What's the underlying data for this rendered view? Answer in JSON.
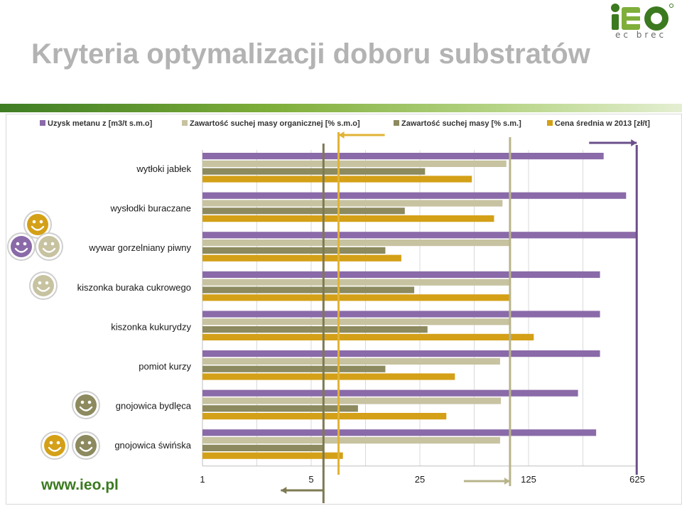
{
  "slide": {
    "title": "Kryteria optymalizacji doboru substratów",
    "footer_url": "www.ieo.pl",
    "logo_text": "iEO",
    "logo_subtext": "ec brec"
  },
  "colors": {
    "title": "#b3b3b3",
    "brand_green": "#3b7a1f",
    "purple_line": "#6b4f8a",
    "tan_line": "#b8b48c",
    "olive_line": "#7d7a52",
    "gold_line": "#e1b235"
  },
  "chart_data": {
    "type": "bar",
    "orientation": "horizontal",
    "x_scale": "log5",
    "xlim": [
      1,
      625
    ],
    "x_ticks": [
      "1",
      "5",
      "25",
      "125",
      "625"
    ],
    "grid": true,
    "legend_position": "top",
    "categories": [
      "wytłoki jabłek",
      "wysłodki buraczane",
      "wywar gorzelniany piwny",
      "kiszonka buraka cukrowego",
      "kiszonka kukurydzy",
      "pomiot kurzy",
      "gnojowica bydlęca",
      "gnojowica świńska"
    ],
    "series": [
      {
        "name": "Uzysk metanu z [m3/t s.m.o]",
        "color": "#8a6aa8",
        "values": [
          380,
          530,
          620,
          360,
          360,
          360,
          260,
          340
        ]
      },
      {
        "name": "Zawartość suchej masy organicznej [% s.m.o]",
        "color": "#c7c2a0",
        "values": [
          90,
          85,
          95,
          95,
          95,
          82,
          83,
          82
        ]
      },
      {
        "name": "Zawartość suchej masy [% s.m.]",
        "color": "#8c8a5e",
        "values": [
          27,
          20,
          15,
          23,
          28,
          15,
          10,
          6
        ]
      },
      {
        "name": "Cena średnia w 2013 [zł/t]",
        "color": "#d4a017",
        "values": [
          54,
          75,
          19,
          95,
          135,
          42,
          37,
          8
        ]
      }
    ],
    "reference_lines": [
      {
        "name": "olive",
        "value": 6,
        "color": "#7d7a52",
        "arrow": "left"
      },
      {
        "name": "gold",
        "value": 7.5,
        "color": "#e1b235",
        "arrow": "left"
      },
      {
        "name": "tan",
        "value": 95,
        "color": "#b8b48c",
        "arrow": "right"
      },
      {
        "name": "purple",
        "value": 620,
        "color": "#6b4f8a",
        "arrow": "right"
      }
    ],
    "smileys": [
      {
        "category": "wywar gorzelniany piwny",
        "colors": [
          "#8a6aa8",
          "#d4a017",
          "#c7c2a0"
        ]
      },
      {
        "category": "kiszonka buraka cukrowego",
        "colors": [
          "#c7c2a0"
        ]
      },
      {
        "category": "gnojowica bydlęca",
        "colors": [
          "#8c8a5e"
        ]
      },
      {
        "category": "gnojowica świńska",
        "colors": [
          "#d4a017",
          "#8c8a5e"
        ]
      }
    ]
  }
}
